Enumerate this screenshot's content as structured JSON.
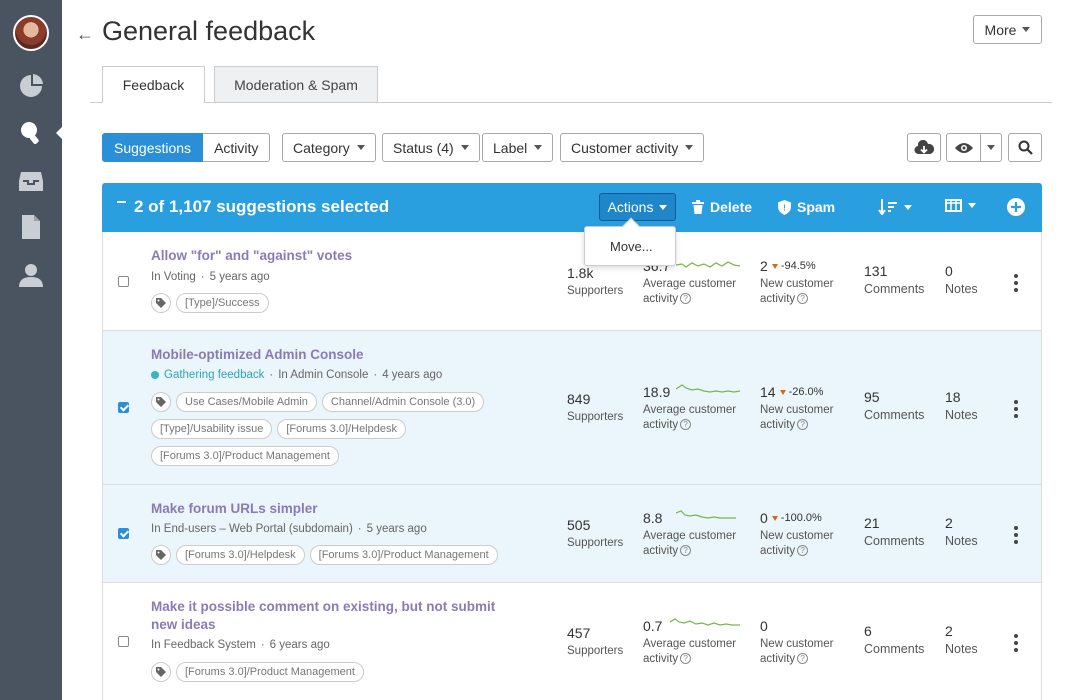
{
  "header": {
    "title": "General feedback",
    "more_label": "More"
  },
  "tabs": [
    {
      "label": "Feedback"
    },
    {
      "label": "Moderation & Spam"
    }
  ],
  "filters": {
    "view_toggle": [
      "Suggestions",
      "Activity"
    ],
    "dropdowns": [
      "Category",
      "Status (4)",
      "Label",
      "Customer activity"
    ]
  },
  "selection_bar": {
    "title": "2 of 1,107 suggestions selected",
    "actions_label": "Actions",
    "delete_label": "Delete",
    "spam_label": "Spam",
    "menu_items": [
      "Move..."
    ]
  },
  "labels": {
    "supporters": "Supporters",
    "avg_activity_line1": "Average customer",
    "avg_activity_line2": "activity",
    "new_activity_line1": "New customer",
    "new_activity_line2": "activity",
    "comments": "Comments",
    "notes": "Notes"
  },
  "rows": [
    {
      "title": "Allow \"for\" and \"against\" votes",
      "checked": false,
      "status": "",
      "forum": "In Voting",
      "age": "5 years ago",
      "tags": [
        "[Type]/Success"
      ],
      "supporters": "1.8k",
      "avg_activity": "36.7",
      "new_activity": "2",
      "delta": "-94.5%",
      "comments": "131",
      "notes": "0"
    },
    {
      "title": "Mobile-optimized Admin Console",
      "checked": true,
      "status": "Gathering feedback",
      "forum": "In Admin Console",
      "age": "4 years ago",
      "tags": [
        "Use Cases/Mobile Admin",
        "Channel/Admin Console (3.0)",
        "[Type]/Usability issue",
        "[Forums 3.0]/Helpdesk",
        "[Forums 3.0]/Product Management"
      ],
      "supporters": "849",
      "avg_activity": "18.9",
      "new_activity": "14",
      "delta": "-26.0%",
      "comments": "95",
      "notes": "18"
    },
    {
      "title": "Make forum URLs simpler",
      "checked": true,
      "status": "",
      "forum": "In End-users – Web Portal (subdomain)",
      "age": "5 years ago",
      "tags": [
        "[Forums 3.0]/Helpdesk",
        "[Forums 3.0]/Product Management"
      ],
      "supporters": "505",
      "avg_activity": "8.8",
      "new_activity": "0",
      "delta": "-100.0%",
      "comments": "21",
      "notes": "2"
    },
    {
      "title": "Make it possible comment on existing, but not submit new ideas",
      "checked": false,
      "status": "",
      "forum": "In Feedback System",
      "age": "6 years ago",
      "tags": [
        "[Forums 3.0]/Product Management"
      ],
      "supporters": "457",
      "avg_activity": "0.7",
      "new_activity": "0",
      "delta": "",
      "comments": "6",
      "notes": "2"
    }
  ],
  "colors": {
    "accent": "#2a9fe0",
    "sidebar": "#4a5460",
    "title_link": "#8b7bb5",
    "status": "#2fa4b8",
    "spark": "#7ab648"
  },
  "icons": [
    "avatar",
    "pie-chart-icon",
    "lightbulb-icon",
    "inbox-icon",
    "document-icon",
    "user-icon",
    "download-cloud-icon",
    "eye-icon",
    "search-icon",
    "trash-icon",
    "shield-icon",
    "sort-icon",
    "columns-icon",
    "plus-circle-icon",
    "tag-icon",
    "kebab-icon"
  ]
}
